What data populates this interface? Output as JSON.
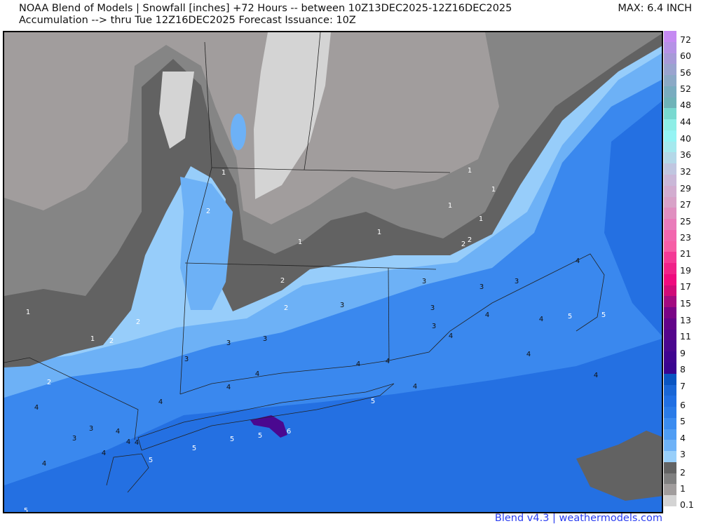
{
  "header": {
    "line1": "NOAA Blend of Models | Snowfall [inches] +72 Hours -- between 10Z13DEC2025-12Z16DEC2025",
    "line2": "Accumulation --> thru Tue 12Z16DEC2025   Forecast Issuance: 10Z",
    "max": "MAX: 6.4 INCH"
  },
  "colorbar": {
    "labels": [
      "72",
      "60",
      "56",
      "52",
      "48",
      "44",
      "40",
      "36",
      "32",
      "29",
      "27",
      "25",
      "23",
      "21",
      "19",
      "17",
      "15",
      "13",
      "11",
      "9",
      "8",
      "7",
      "6",
      "5",
      "4",
      "3",
      "2",
      "1",
      "0.1"
    ],
    "colors": [
      "#c58af2",
      "#b592e6",
      "#a79ad8",
      "#9aa4cf",
      "#8ba9c6",
      "#79acbf",
      "#6fb3b8",
      "#79d9d0",
      "#8eeee6",
      "#95f4f4",
      "#a5e9ee",
      "#b4d8e8",
      "#c0c6e0",
      "#cab8d8",
      "#d2add0",
      "#d8a2c8",
      "#e08fc0",
      "#e97cba",
      "#f267ae",
      "#f65ea6",
      "#f43a96",
      "#f02288",
      "#ef0a7e",
      "#d00a78",
      "#a30a80",
      "#7a0486",
      "#630489",
      "#55058c",
      "#4a078f",
      "#400590",
      "#3a0590",
      "#0a55c2",
      "#1966d6",
      "#206fe3",
      "#2a7be8",
      "#3b8cf0",
      "#4f9df4",
      "#6eb2f7",
      "#98cffa",
      "#636363",
      "#808080",
      "#a19d9d",
      "#d4d4d4"
    ]
  },
  "map": {
    "colors": {
      "base": "#3a88ee",
      "heavy": "#2470e2",
      "light3": "#6db1f6",
      "light2": "#97cdfa",
      "gray_dark": "#626262",
      "gray_mid": "#858585",
      "gray_light": "#a19d9d",
      "gray_pale": "#d4d4d4",
      "max_purple": "#4a0890"
    },
    "contour_labels": [
      "1",
      "2",
      "1",
      "1",
      "1",
      "1",
      "2",
      "2",
      "1",
      "1",
      "2",
      "2",
      "3",
      "3",
      "3",
      "3",
      "4",
      "3",
      "3",
      "4",
      "4",
      "4",
      "5",
      "5",
      "4",
      "4",
      "1",
      "2",
      "1",
      "2",
      "3",
      "3",
      "3",
      "4",
      "4",
      "4",
      "4",
      "4",
      "5",
      "4",
      "2",
      "4",
      "3",
      "4",
      "3",
      "4",
      "4",
      "4",
      "4",
      "5",
      "5",
      "5",
      "5",
      "6",
      "5"
    ]
  },
  "footer": "Blend v4.3 | weathermodels.com"
}
